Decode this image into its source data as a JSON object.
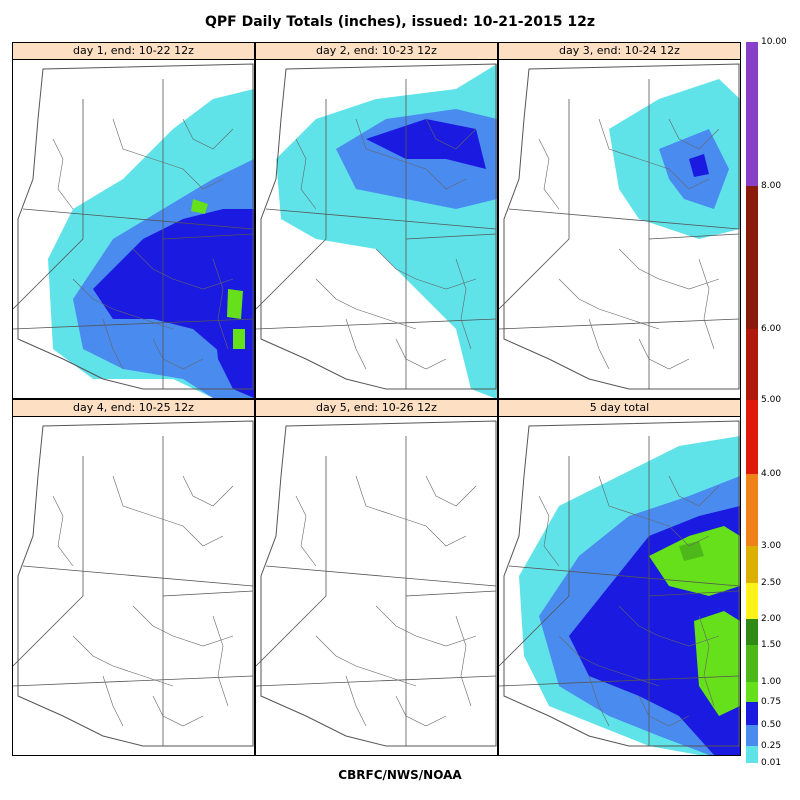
{
  "title": "QPF Daily Totals (inches),  issued: 10-21-2015 12z",
  "footer": "CBRFC/NWS/NOAA",
  "colors": {
    "header_bg": "#fde0c4",
    "boundary": "#555555",
    "river": "#666666"
  },
  "panels": [
    {
      "label": "day 1, end: 10-22 12z",
      "coverage": "heavy-southeast"
    },
    {
      "label": "day 2, end: 10-23 12z",
      "coverage": "north-band"
    },
    {
      "label": "day 3, end: 10-24 12z",
      "coverage": "light-northeast"
    },
    {
      "label": "day 4, end: 10-25 12z",
      "coverage": "none"
    },
    {
      "label": "day 5, end: 10-26 12z",
      "coverage": "none"
    },
    {
      "label": "5 day total",
      "coverage": "total"
    }
  ],
  "legend": {
    "bins": [
      {
        "lo": "0.01",
        "hi": "0.25",
        "color": "#5fe3e8"
      },
      {
        "lo": "0.25",
        "hi": "0.50",
        "color": "#4a8bf0"
      },
      {
        "lo": "0.50",
        "hi": "0.75",
        "color": "#1a1ae0"
      },
      {
        "lo": "0.75",
        "hi": "1.00",
        "color": "#66e01a"
      },
      {
        "lo": "1.00",
        "hi": "1.50",
        "color": "#4cb81a"
      },
      {
        "lo": "1.50",
        "hi": "2.00",
        "color": "#2e8a14"
      },
      {
        "lo": "2.00",
        "hi": "2.50",
        "color": "#fff21a"
      },
      {
        "lo": "2.50",
        "hi": "3.00",
        "color": "#dcb000"
      },
      {
        "lo": "3.00",
        "hi": "4.00",
        "color": "#f08018"
      },
      {
        "lo": "4.00",
        "hi": "5.00",
        "color": "#e01a0a"
      },
      {
        "lo": "5.00",
        "hi": "6.00",
        "color": "#b01a0a"
      },
      {
        "lo": "6.00",
        "hi": "8.00",
        "color": "#8a1a0a"
      },
      {
        "lo": "8.00",
        "hi": "10.00",
        "color": "#ee1aee"
      },
      {
        "lo": "10.00",
        "hi": "",
        "color": "#8840c8"
      }
    ],
    "tick_labels": [
      "0.01",
      "0.25",
      "0.50",
      "0.75",
      "1.00",
      "1.50",
      "2.00",
      "2.50",
      "3.00",
      "4.00",
      "5.00",
      "6.00",
      "8.00",
      "10.00"
    ]
  }
}
